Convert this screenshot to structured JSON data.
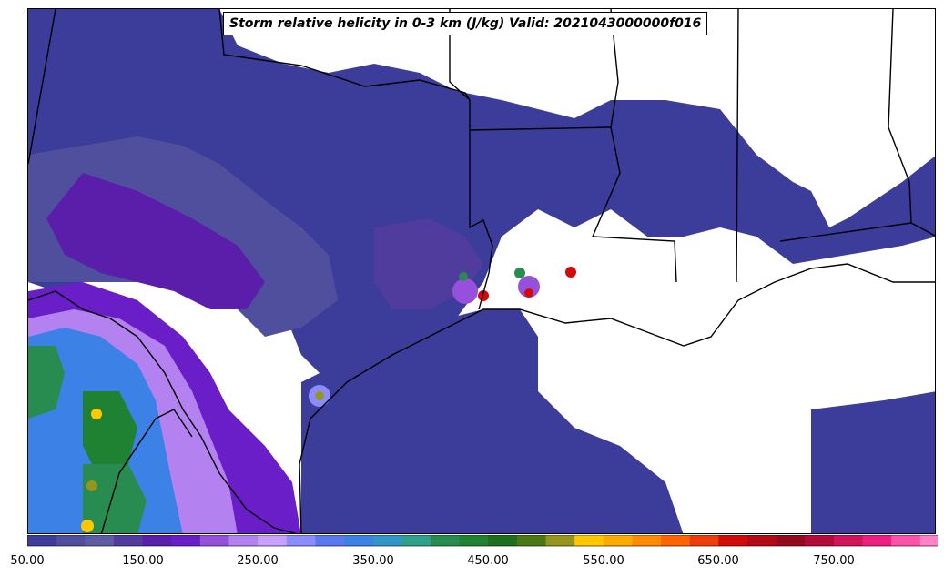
{
  "title": "Storm relative helicity in 0-3 km (J/kg) Valid: 2021043000000f016",
  "colorbar": {
    "min": 50,
    "step": 25,
    "colors": [
      "#3c3c9a",
      "#4f4f9e",
      "#5c5ca2",
      "#503c9c",
      "#5a1eaa",
      "#6a1ec8",
      "#9650dc",
      "#b482f0",
      "#c8a0ff",
      "#8c8cff",
      "#5a78f0",
      "#3c82e6",
      "#3296c8",
      "#2ea08c",
      "#288c50",
      "#1e8232",
      "#1e6e1e",
      "#4a7814",
      "#96961e",
      "#ffc800",
      "#ffaa00",
      "#ff8c00",
      "#ff6400",
      "#f03c0a",
      "#d20a0a",
      "#b40a14",
      "#960a1e",
      "#b40a3c",
      "#d2145a",
      "#f01e82",
      "#ff50aa",
      "#ff82c8"
    ],
    "extend_color": "#ffa0d2",
    "ticks": [
      "50.00",
      "150.00",
      "250.00",
      "350.00",
      "450.00",
      "550.00",
      "650.00",
      "750.00"
    ]
  }
}
